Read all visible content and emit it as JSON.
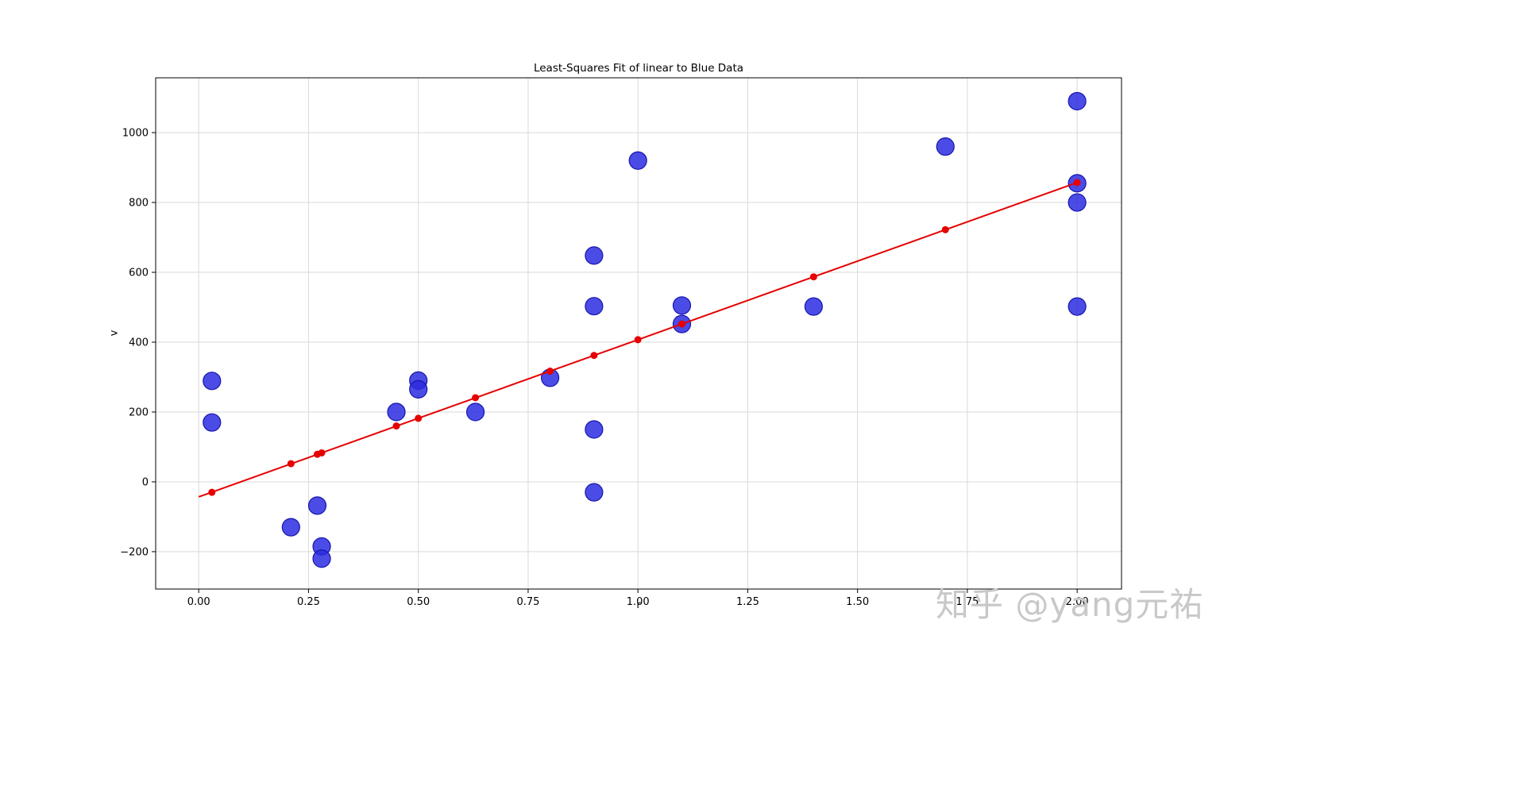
{
  "page": {
    "background": "#ffffff"
  },
  "watermark": {
    "text": "知乎 @yang元祐",
    "color": "#c8c8c8"
  },
  "chart_data": {
    "type": "scatter",
    "title": "Least-Squares Fit of linear to Blue Data",
    "xlabel": "r",
    "ylabel": "v",
    "xlim": [
      -0.098,
      2.101
    ],
    "ylim": [
      -307,
      1157
    ],
    "x_ticks": [
      0.0,
      0.25,
      0.5,
      0.75,
      1.0,
      1.25,
      1.5,
      1.75,
      2.0
    ],
    "x_tick_labels": [
      "0.00",
      "0.25",
      "0.50",
      "0.75",
      "1.00",
      "1.25",
      "1.50",
      "1.75",
      "2.00"
    ],
    "y_ticks": [
      -200,
      0,
      200,
      400,
      600,
      800,
      1000
    ],
    "y_tick_labels": [
      "−200",
      "0",
      "200",
      "400",
      "600",
      "800",
      "1000"
    ],
    "grid": true,
    "grid_color": "#d9d9d9",
    "frame_color": "#000000",
    "legend": "none",
    "series": [
      {
        "name": "blue-data",
        "type": "scatter",
        "color": "#2b2be0",
        "edge_color": "#1717ad",
        "opacity": 0.85,
        "marker_radius": 11,
        "points": [
          [
            0.03,
            289
          ],
          [
            0.03,
            170
          ],
          [
            0.21,
            -130
          ],
          [
            0.27,
            -68
          ],
          [
            0.28,
            -185
          ],
          [
            0.28,
            -220
          ],
          [
            0.45,
            200
          ],
          [
            0.5,
            290
          ],
          [
            0.5,
            265
          ],
          [
            0.63,
            200
          ],
          [
            0.8,
            298
          ],
          [
            0.9,
            648
          ],
          [
            0.9,
            503
          ],
          [
            0.9,
            150
          ],
          [
            0.9,
            -30
          ],
          [
            1.0,
            920
          ],
          [
            1.1,
            505
          ],
          [
            1.1,
            452
          ],
          [
            1.4,
            502
          ],
          [
            1.7,
            960
          ],
          [
            2.0,
            1090
          ],
          [
            2.0,
            855
          ],
          [
            2.0,
            800
          ],
          [
            2.0,
            502
          ]
        ]
      },
      {
        "name": "linear-fit-line",
        "type": "line",
        "color": "#e60000",
        "width": 2,
        "x_range": [
          0.0,
          2.0
        ],
        "slope": 450,
        "intercept": -43
      },
      {
        "name": "fit-points",
        "type": "scatter",
        "color": "#e60000",
        "edge_color": "#e60000",
        "opacity": 1,
        "marker_radius": 4.5,
        "points": [
          [
            0.03,
            -30
          ],
          [
            0.21,
            52
          ],
          [
            0.27,
            79
          ],
          [
            0.28,
            83
          ],
          [
            0.45,
            160
          ],
          [
            0.5,
            182
          ],
          [
            0.63,
            241
          ],
          [
            0.8,
            317
          ],
          [
            0.9,
            362
          ],
          [
            1.0,
            407
          ],
          [
            1.1,
            452
          ],
          [
            1.4,
            587
          ],
          [
            1.7,
            722
          ],
          [
            2.0,
            857
          ]
        ]
      }
    ]
  }
}
